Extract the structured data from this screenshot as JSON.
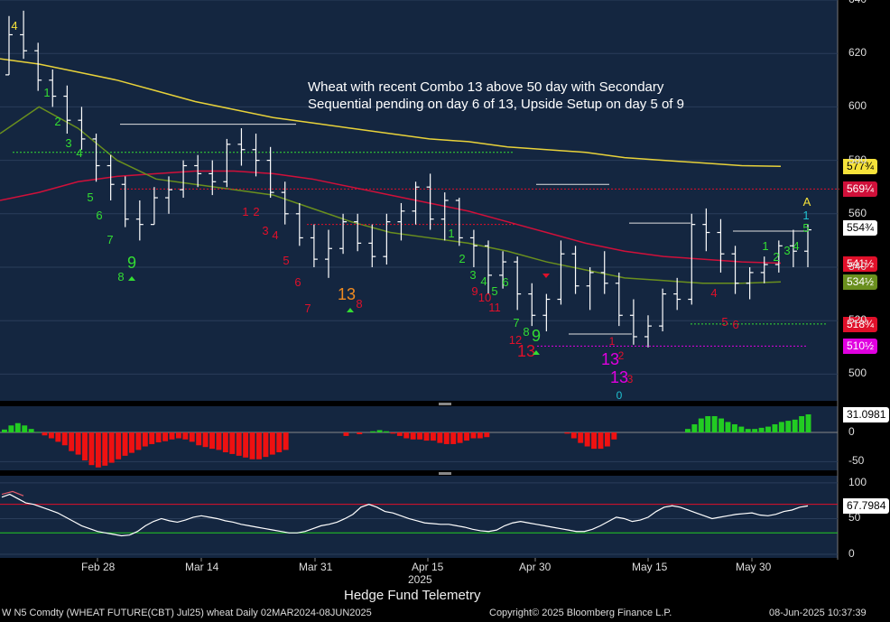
{
  "footer": {
    "title": "Hedge Fund Telemetry",
    "ticker_line": "W N5 Comdty (WHEAT FUTURE(CBT) Jul25) wheat  Daily 02MAR2024-08JUN2025",
    "copyright": "Copyright© 2025 Bloomberg Finance L.P.",
    "timestamp": "08-Jun-2025 10:37:39"
  },
  "chart_data": [
    {
      "type": "candlestick",
      "title": "",
      "annotation": "Wheat with recent Combo 13 above 50 day with Secondary Sequential pending on day 6 of 13, Upside Setup on day 5 of 9",
      "ylim": [
        490,
        640
      ],
      "y_ticks": [
        500,
        520,
        540,
        560,
        580,
        600,
        620,
        640
      ],
      "y_tick_labels": [
        "500",
        "520",
        "540",
        "560",
        "580",
        "600",
        "620",
        "640"
      ],
      "x_tick_labels": [
        "Feb 28",
        "Mar 14",
        "Mar 31",
        "Apr 15",
        "Apr 30",
        "May 15",
        "May 30"
      ],
      "x_year_label": "2025",
      "price_tags": [
        {
          "label": "577¾",
          "value": 577.75,
          "color": "#f5e23a",
          "text_color": "#000"
        },
        {
          "label": "569¼",
          "value": 569.25,
          "color": "#d0103a",
          "text_color": "#fff"
        },
        {
          "label": "554¾",
          "value": 554.75,
          "color": "#ffffff",
          "text_color": "#000"
        },
        {
          "label": "541½",
          "value": 541.5,
          "color": "#e0102a",
          "text_color": "#fff"
        },
        {
          "label": "534½",
          "value": 534.5,
          "color": "#6a8f1e",
          "text_color": "#fff"
        },
        {
          "label": "518¾",
          "value": 518.75,
          "color": "#e0102a",
          "text_color": "#fff"
        },
        {
          "label": "510½",
          "value": 510.5,
          "color": "#e000e0",
          "text_color": "#fff"
        }
      ],
      "series": [
        {
          "name": "",
          "kind": "ohlc",
          "color": "#ffffff",
          "ohlc": [
            [
              612,
              634,
              612,
              627
            ],
            [
              627,
              636,
              618,
              621
            ],
            [
              621,
              624,
              606,
              610
            ],
            [
              610,
              614,
              600,
              604
            ],
            [
              604,
              608,
              590,
              595
            ],
            [
              595,
              600,
              584,
              588
            ],
            [
              588,
              590,
              572,
              578
            ],
            [
              578,
              582,
              565,
              571
            ],
            [
              571,
              574,
              555,
              558
            ],
            [
              558,
              565,
              550,
              556
            ],
            [
              556,
              570,
              556,
              566
            ],
            [
              566,
              574,
              560,
              569
            ],
            [
              569,
              580,
              566,
              578
            ],
            [
              578,
              582,
              570,
              575
            ],
            [
              575,
              580,
              567,
              572
            ],
            [
              572,
              588,
              570,
              586
            ],
            [
              586,
              592,
              578,
              584
            ],
            [
              584,
              590,
              574,
              580
            ],
            [
              580,
              585,
              566,
              568
            ],
            [
              568,
              572,
              556,
              560
            ],
            [
              560,
              564,
              548,
              551
            ],
            [
              551,
              556,
              540,
              543
            ],
            [
              543,
              554,
              536,
              547
            ],
            [
              547,
              560,
              545,
              557
            ],
            [
              557,
              560,
              546,
              549
            ],
            [
              549,
              556,
              540,
              544
            ],
            [
              544,
              560,
              541,
              557
            ],
            [
              557,
              564,
              550,
              561
            ],
            [
              561,
              572,
              556,
              570
            ],
            [
              570,
              575,
              554,
              558
            ],
            [
              558,
              568,
              550,
              565
            ],
            [
              565,
              566,
              548,
              551
            ],
            [
              551,
              554,
              540,
              548
            ],
            [
              548,
              550,
              530,
              537
            ],
            [
              537,
              546,
              532,
              542
            ],
            [
              542,
              544,
              524,
              530
            ],
            [
              530,
              534,
              518,
              522
            ],
            [
              522,
              530,
              516,
              528
            ],
            [
              528,
              550,
              526,
              545
            ],
            [
              545,
              548,
              530,
              533
            ],
            [
              533,
              540,
              524,
              538
            ],
            [
              538,
              546,
              530,
              534
            ],
            [
              534,
              538,
              518,
              522
            ],
            [
              522,
              528,
              511,
              514
            ],
            [
              514,
              522,
              510,
              518
            ],
            [
              518,
              532,
              516,
              530
            ],
            [
              530,
              536,
              524,
              528
            ],
            [
              528,
              560,
              526,
              556
            ],
            [
              556,
              562,
              546,
              553
            ],
            [
              553,
              558,
              538,
              545
            ],
            [
              545,
              548,
              530,
              534
            ],
            [
              534,
              540,
              528,
              538
            ],
            [
              538,
              544,
              534,
              541
            ],
            [
              541,
              550,
              538,
              548
            ],
            [
              548,
              554,
              540,
              546
            ],
            [
              546,
              556,
              540,
              554
            ]
          ]
        },
        {
          "name": "",
          "kind": "ma",
          "color": "#e8d23a",
          "values": [
            618,
            616,
            613,
            610,
            606,
            602,
            599,
            596,
            594,
            592,
            590,
            588,
            587,
            585,
            584,
            583,
            581,
            580,
            579,
            578,
            577.75
          ]
        },
        {
          "name": "",
          "kind": "ma",
          "color": "#d0103a",
          "values": [
            565,
            568,
            572,
            574,
            575,
            576,
            576,
            575,
            573,
            570,
            567,
            564,
            561,
            557,
            553,
            549,
            546,
            544,
            543,
            542,
            541.5
          ]
        },
        {
          "name": "",
          "kind": "ma",
          "color": "#6a8f1e",
          "values": [
            590,
            600,
            592,
            580,
            573,
            571,
            569,
            567,
            562,
            557,
            553,
            551,
            549,
            546,
            542,
            539,
            536,
            535,
            534,
            534,
            534.5
          ]
        }
      ],
      "td_labels": [
        {
          "text": "4",
          "color": "#f5e23a"
        },
        {
          "text": "1",
          "color": "#33dd33"
        },
        {
          "text": "2",
          "color": "#33dd33"
        },
        {
          "text": "3",
          "color": "#33dd33"
        },
        {
          "text": "4",
          "color": "#33dd33"
        },
        {
          "text": "5",
          "color": "#33dd33"
        },
        {
          "text": "6",
          "color": "#33dd33"
        },
        {
          "text": "7",
          "color": "#33dd33"
        },
        {
          "text": "8",
          "color": "#33dd33"
        },
        {
          "text": "9",
          "color": "#33dd33"
        },
        {
          "text": "1",
          "color": "#e0102a"
        },
        {
          "text": "2",
          "color": "#e0102a"
        },
        {
          "text": "3",
          "color": "#e0102a"
        },
        {
          "text": "4",
          "color": "#e0102a"
        },
        {
          "text": "5",
          "color": "#e0102a"
        },
        {
          "text": "6",
          "color": "#e0102a"
        },
        {
          "text": "7",
          "color": "#e0102a"
        },
        {
          "text": "8",
          "color": "#e0102a"
        },
        {
          "text": "13",
          "color": "#f08a20"
        },
        {
          "text": "1",
          "color": "#33dd33"
        },
        {
          "text": "2",
          "color": "#33dd33"
        },
        {
          "text": "3",
          "color": "#33dd33"
        },
        {
          "text": "4",
          "color": "#33dd33"
        },
        {
          "text": "5",
          "color": "#33dd33"
        },
        {
          "text": "6",
          "color": "#33dd33"
        },
        {
          "text": "7",
          "color": "#33dd33"
        },
        {
          "text": "8",
          "color": "#33dd33"
        },
        {
          "text": "9",
          "color": "#33dd33"
        },
        {
          "text": "9",
          "color": "#e0102a"
        },
        {
          "text": "10",
          "color": "#e0102a"
        },
        {
          "text": "11",
          "color": "#e0102a"
        },
        {
          "text": "12",
          "color": "#e0102a"
        },
        {
          "text": "13",
          "color": "#e0102a"
        },
        {
          "text": "13",
          "color": "#e000e0"
        },
        {
          "text": "13",
          "color": "#e000e0"
        },
        {
          "text": "0",
          "color": "#20c0d0"
        },
        {
          "text": "3",
          "color": "#e0102a"
        },
        {
          "text": "1",
          "color": "#e0102a"
        },
        {
          "text": "2",
          "color": "#e0102a"
        },
        {
          "text": "4",
          "color": "#e0102a"
        },
        {
          "text": "5",
          "color": "#e0102a"
        },
        {
          "text": "6",
          "color": "#e0102a"
        },
        {
          "text": "1",
          "color": "#33dd33"
        },
        {
          "text": "2",
          "color": "#33dd33"
        },
        {
          "text": "3",
          "color": "#33dd33"
        },
        {
          "text": "4",
          "color": "#33dd33"
        },
        {
          "text": "5",
          "color": "#33dd33"
        },
        {
          "text": "1",
          "color": "#20c0d0"
        },
        {
          "text": "A",
          "color": "#f5e23a"
        }
      ]
    },
    {
      "type": "bar",
      "ylim": [
        -65,
        45
      ],
      "y_ticks": [
        0,
        -50
      ],
      "y_tick_labels": [
        "0",
        "-50"
      ],
      "last_value_label": "31.0981",
      "positive_color": "#22cc22",
      "negative_color": "#ee1111",
      "values": [
        5,
        12,
        16,
        12,
        6,
        1,
        -5,
        -10,
        -16,
        -22,
        -32,
        -38,
        -48,
        -56,
        -60,
        -57,
        -52,
        -46,
        -40,
        -35,
        -30,
        -24,
        -20,
        -17,
        -15,
        -12,
        -10,
        -12,
        -16,
        -22,
        -25,
        -28,
        -30,
        -34,
        -37,
        -40,
        -43,
        -46,
        -46,
        -42,
        -38,
        -34,
        -30,
        0,
        0,
        0,
        0,
        0,
        0,
        0,
        0,
        -6,
        0,
        -3,
        0,
        2,
        4,
        2,
        -2,
        -6,
        -10,
        -12,
        -12,
        -14,
        -14,
        -18,
        -20,
        -20,
        -18,
        -14,
        -10,
        -10,
        -8,
        0,
        0,
        0,
        0,
        0,
        0,
        0,
        0,
        0,
        0,
        0,
        -2,
        -10,
        -18,
        -24,
        -28,
        -28,
        -24,
        -12,
        0,
        0,
        0,
        0,
        0,
        0,
        0,
        0,
        0,
        0,
        6,
        14,
        24,
        28,
        28,
        24,
        18,
        14,
        10,
        6,
        6,
        8,
        10,
        14,
        18,
        20,
        22,
        28,
        31.1
      ]
    },
    {
      "type": "line",
      "ylim": [
        -5,
        110
      ],
      "y_ticks": [
        0,
        50,
        100
      ],
      "y_tick_labels": [
        "0",
        "50",
        "100"
      ],
      "last_value_label": "67.7984",
      "upper_band": 70,
      "lower_band": 30,
      "series": [
        {
          "name": "",
          "color": "#ffffff",
          "values": [
            80,
            84,
            78,
            72,
            70,
            66,
            62,
            58,
            52,
            46,
            40,
            36,
            32,
            30,
            28,
            26,
            27,
            32,
            40,
            46,
            50,
            47,
            45,
            48,
            52,
            54,
            52,
            50,
            47,
            45,
            42,
            40,
            38,
            36,
            34,
            32,
            30,
            30,
            32,
            36,
            40,
            42,
            45,
            50,
            56,
            66,
            70,
            66,
            60,
            58,
            54,
            50,
            47,
            44,
            43,
            42,
            42,
            40,
            38,
            35,
            33,
            32,
            34,
            40,
            44,
            46,
            44,
            42,
            40,
            38,
            36,
            34,
            32,
            32,
            35,
            40,
            46,
            52,
            50,
            46,
            48,
            52,
            60,
            66,
            68,
            66,
            62,
            58,
            54,
            50,
            52,
            54,
            56,
            57,
            58,
            55,
            54,
            56,
            60,
            62,
            66,
            67.8
          ]
        },
        {
          "name": "",
          "color": "#e05a6a",
          "values": [
            84,
            88,
            82
          ]
        }
      ]
    }
  ]
}
